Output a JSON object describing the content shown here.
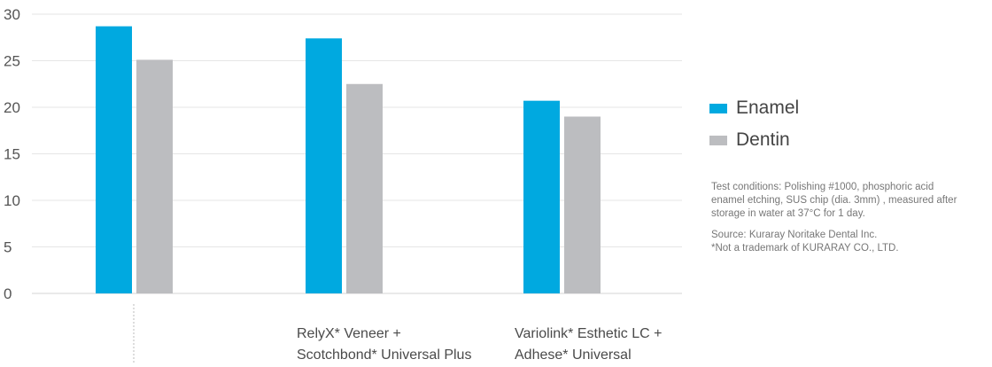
{
  "chart_data": {
    "type": "bar",
    "categories": [
      [],
      [
        "RelyX* Veneer +",
        "Scotchbond* Universal Plus"
      ],
      [
        "Variolink* Esthetic LC +",
        "Adhese* Universal"
      ]
    ],
    "series": [
      {
        "name": "Enamel",
        "color": "#00a9e0",
        "values": [
          28.7,
          27.4,
          20.7
        ]
      },
      {
        "name": "Dentin",
        "color": "#bcbdc0",
        "values": [
          25.1,
          22.5,
          19.0
        ]
      }
    ],
    "yticks": [
      0,
      5,
      10,
      15,
      20,
      25,
      30
    ],
    "ylim": [
      0,
      30
    ],
    "grid": true,
    "legend_position": "right",
    "title": "",
    "xlabel": "",
    "ylabel": ""
  },
  "notes": {
    "test_conditions": [
      "Test conditions: Polishing #1000, phosphoric acid",
      "enamel etching, SUS chip (dia. 3mm) , measured after",
      "storage in water at 37°C for 1 day."
    ],
    "source": [
      "Source: Kuraray Noritake Dental Inc.",
      "*Not a trademark of KURARAY CO., LTD."
    ]
  }
}
